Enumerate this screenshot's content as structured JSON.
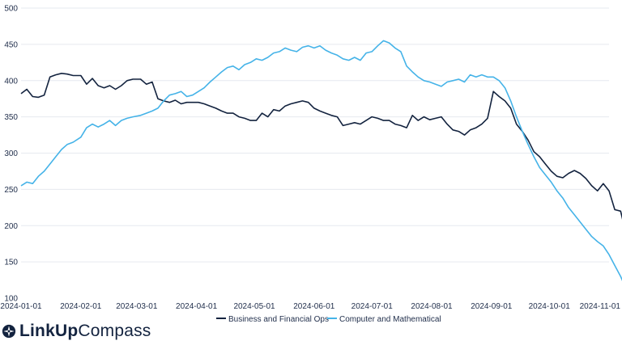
{
  "brand": {
    "name_bold": "LinkUp",
    "name_light": "Compass",
    "icon": "compass-icon"
  },
  "chart_data": {
    "type": "line",
    "title": "",
    "xlabel": "",
    "ylabel": "",
    "ylim": [
      100,
      500
    ],
    "yticks": [
      100,
      150,
      200,
      250,
      300,
      350,
      400,
      450,
      500
    ],
    "xlim": [
      "2024-01-01",
      "2024-11-01"
    ],
    "xticks": [
      "2024-01-01",
      "2024-02-01",
      "2024-03-01",
      "2024-04-01",
      "2024-05-01",
      "2024-06-01",
      "2024-07-01",
      "2024-08-01",
      "2024-09-01",
      "2024-10-01",
      "2024-11-01"
    ],
    "grid": "horizontal",
    "legend": "bottom-center",
    "series": [
      {
        "name": "Business and Financial Ops",
        "color": "#13233f",
        "points": [
          [
            "2024-01-01",
            382
          ],
          [
            "2024-01-04",
            388
          ],
          [
            "2024-01-07",
            378
          ],
          [
            "2024-01-10",
            377
          ],
          [
            "2024-01-13",
            380
          ],
          [
            "2024-01-16",
            405
          ],
          [
            "2024-01-19",
            408
          ],
          [
            "2024-01-22",
            410
          ],
          [
            "2024-01-25",
            409
          ],
          [
            "2024-01-28",
            407
          ],
          [
            "2024-02-01",
            407
          ],
          [
            "2024-02-04",
            395
          ],
          [
            "2024-02-07",
            403
          ],
          [
            "2024-02-10",
            393
          ],
          [
            "2024-02-13",
            390
          ],
          [
            "2024-02-16",
            393
          ],
          [
            "2024-02-19",
            388
          ],
          [
            "2024-02-22",
            393
          ],
          [
            "2024-02-25",
            400
          ],
          [
            "2024-02-28",
            402
          ],
          [
            "2024-03-03",
            402
          ],
          [
            "2024-03-06",
            395
          ],
          [
            "2024-03-09",
            398
          ],
          [
            "2024-03-12",
            375
          ],
          [
            "2024-03-15",
            372
          ],
          [
            "2024-03-18",
            370
          ],
          [
            "2024-03-21",
            373
          ],
          [
            "2024-03-24",
            368
          ],
          [
            "2024-03-27",
            370
          ],
          [
            "2024-03-30",
            370
          ],
          [
            "2024-04-02",
            370
          ],
          [
            "2024-04-05",
            368
          ],
          [
            "2024-04-08",
            365
          ],
          [
            "2024-04-11",
            362
          ],
          [
            "2024-04-14",
            358
          ],
          [
            "2024-04-17",
            355
          ],
          [
            "2024-04-20",
            355
          ],
          [
            "2024-04-23",
            350
          ],
          [
            "2024-04-26",
            348
          ],
          [
            "2024-04-29",
            345
          ],
          [
            "2024-05-02",
            345
          ],
          [
            "2024-05-05",
            355
          ],
          [
            "2024-05-08",
            350
          ],
          [
            "2024-05-11",
            360
          ],
          [
            "2024-05-14",
            358
          ],
          [
            "2024-05-17",
            365
          ],
          [
            "2024-05-20",
            368
          ],
          [
            "2024-05-23",
            370
          ],
          [
            "2024-05-26",
            372
          ],
          [
            "2024-05-29",
            370
          ],
          [
            "2024-06-01",
            362
          ],
          [
            "2024-06-04",
            358
          ],
          [
            "2024-06-07",
            355
          ],
          [
            "2024-06-10",
            352
          ],
          [
            "2024-06-13",
            350
          ],
          [
            "2024-06-16",
            338
          ],
          [
            "2024-06-19",
            340
          ],
          [
            "2024-06-22",
            342
          ],
          [
            "2024-06-25",
            340
          ],
          [
            "2024-06-28",
            345
          ],
          [
            "2024-07-01",
            350
          ],
          [
            "2024-07-04",
            348
          ],
          [
            "2024-07-07",
            345
          ],
          [
            "2024-07-10",
            345
          ],
          [
            "2024-07-13",
            340
          ],
          [
            "2024-07-16",
            338
          ],
          [
            "2024-07-19",
            335
          ],
          [
            "2024-07-22",
            352
          ],
          [
            "2024-07-25",
            345
          ],
          [
            "2024-07-28",
            350
          ],
          [
            "2024-07-31",
            346
          ],
          [
            "2024-08-03",
            348
          ],
          [
            "2024-08-06",
            350
          ],
          [
            "2024-08-09",
            340
          ],
          [
            "2024-08-12",
            332
          ],
          [
            "2024-08-15",
            330
          ],
          [
            "2024-08-18",
            325
          ],
          [
            "2024-08-21",
            332
          ],
          [
            "2024-08-24",
            335
          ],
          [
            "2024-08-27",
            340
          ],
          [
            "2024-08-30",
            348
          ],
          [
            "2024-09-02",
            385
          ],
          [
            "2024-09-05",
            378
          ],
          [
            "2024-09-08",
            372
          ],
          [
            "2024-09-11",
            362
          ],
          [
            "2024-09-14",
            340
          ],
          [
            "2024-09-17",
            330
          ],
          [
            "2024-09-20",
            318
          ],
          [
            "2024-09-23",
            302
          ],
          [
            "2024-09-26",
            295
          ],
          [
            "2024-09-29",
            285
          ],
          [
            "2024-10-02",
            275
          ],
          [
            "2024-10-05",
            268
          ],
          [
            "2024-10-08",
            266
          ],
          [
            "2024-10-11",
            272
          ],
          [
            "2024-10-14",
            276
          ],
          [
            "2024-10-17",
            272
          ],
          [
            "2024-10-20",
            265
          ],
          [
            "2024-10-23",
            255
          ],
          [
            "2024-10-26",
            248
          ],
          [
            "2024-10-29",
            258
          ],
          [
            "2024-11-01",
            248
          ],
          [
            "2024-11-04",
            222
          ],
          [
            "2024-11-07",
            220
          ],
          [
            "2024-11-09",
            198
          ]
        ]
      },
      {
        "name": "Computer and Mathematical",
        "color": "#45b3e8",
        "points": [
          [
            "2024-01-01",
            255
          ],
          [
            "2024-01-04",
            260
          ],
          [
            "2024-01-07",
            258
          ],
          [
            "2024-01-10",
            268
          ],
          [
            "2024-01-13",
            275
          ],
          [
            "2024-01-16",
            285
          ],
          [
            "2024-01-19",
            295
          ],
          [
            "2024-01-22",
            305
          ],
          [
            "2024-01-25",
            312
          ],
          [
            "2024-01-28",
            315
          ],
          [
            "2024-02-01",
            322
          ],
          [
            "2024-02-04",
            335
          ],
          [
            "2024-02-07",
            340
          ],
          [
            "2024-02-10",
            336
          ],
          [
            "2024-02-13",
            340
          ],
          [
            "2024-02-16",
            345
          ],
          [
            "2024-02-19",
            338
          ],
          [
            "2024-02-22",
            345
          ],
          [
            "2024-02-25",
            348
          ],
          [
            "2024-02-28",
            350
          ],
          [
            "2024-03-03",
            352
          ],
          [
            "2024-03-06",
            355
          ],
          [
            "2024-03-09",
            358
          ],
          [
            "2024-03-12",
            362
          ],
          [
            "2024-03-15",
            372
          ],
          [
            "2024-03-18",
            380
          ],
          [
            "2024-03-21",
            382
          ],
          [
            "2024-03-24",
            385
          ],
          [
            "2024-03-27",
            378
          ],
          [
            "2024-03-30",
            380
          ],
          [
            "2024-04-02",
            385
          ],
          [
            "2024-04-05",
            390
          ],
          [
            "2024-04-08",
            398
          ],
          [
            "2024-04-11",
            405
          ],
          [
            "2024-04-14",
            412
          ],
          [
            "2024-04-17",
            418
          ],
          [
            "2024-04-20",
            420
          ],
          [
            "2024-04-23",
            415
          ],
          [
            "2024-04-26",
            422
          ],
          [
            "2024-04-29",
            425
          ],
          [
            "2024-05-02",
            430
          ],
          [
            "2024-05-05",
            428
          ],
          [
            "2024-05-08",
            432
          ],
          [
            "2024-05-11",
            438
          ],
          [
            "2024-05-14",
            440
          ],
          [
            "2024-05-17",
            445
          ],
          [
            "2024-05-20",
            442
          ],
          [
            "2024-05-23",
            440
          ],
          [
            "2024-05-26",
            446
          ],
          [
            "2024-05-29",
            448
          ],
          [
            "2024-06-01",
            445
          ],
          [
            "2024-06-04",
            448
          ],
          [
            "2024-06-07",
            442
          ],
          [
            "2024-06-10",
            438
          ],
          [
            "2024-06-13",
            435
          ],
          [
            "2024-06-16",
            430
          ],
          [
            "2024-06-19",
            428
          ],
          [
            "2024-06-22",
            432
          ],
          [
            "2024-06-25",
            428
          ],
          [
            "2024-06-28",
            438
          ],
          [
            "2024-07-01",
            440
          ],
          [
            "2024-07-04",
            448
          ],
          [
            "2024-07-07",
            455
          ],
          [
            "2024-07-10",
            452
          ],
          [
            "2024-07-13",
            445
          ],
          [
            "2024-07-16",
            440
          ],
          [
            "2024-07-19",
            420
          ],
          [
            "2024-07-22",
            412
          ],
          [
            "2024-07-25",
            405
          ],
          [
            "2024-07-28",
            400
          ],
          [
            "2024-07-31",
            398
          ],
          [
            "2024-08-03",
            395
          ],
          [
            "2024-08-06",
            392
          ],
          [
            "2024-08-09",
            398
          ],
          [
            "2024-08-12",
            400
          ],
          [
            "2024-08-15",
            402
          ],
          [
            "2024-08-18",
            398
          ],
          [
            "2024-08-21",
            408
          ],
          [
            "2024-08-24",
            405
          ],
          [
            "2024-08-27",
            408
          ],
          [
            "2024-08-30",
            405
          ],
          [
            "2024-09-02",
            405
          ],
          [
            "2024-09-05",
            400
          ],
          [
            "2024-09-08",
            390
          ],
          [
            "2024-09-11",
            372
          ],
          [
            "2024-09-14",
            350
          ],
          [
            "2024-09-17",
            330
          ],
          [
            "2024-09-20",
            312
          ],
          [
            "2024-09-23",
            295
          ],
          [
            "2024-09-26",
            280
          ],
          [
            "2024-09-29",
            270
          ],
          [
            "2024-10-02",
            260
          ],
          [
            "2024-10-05",
            248
          ],
          [
            "2024-10-08",
            238
          ],
          [
            "2024-10-11",
            225
          ],
          [
            "2024-10-14",
            215
          ],
          [
            "2024-10-17",
            205
          ],
          [
            "2024-10-20",
            195
          ],
          [
            "2024-10-23",
            185
          ],
          [
            "2024-10-26",
            178
          ],
          [
            "2024-10-29",
            172
          ],
          [
            "2024-11-01",
            160
          ],
          [
            "2024-11-04",
            145
          ],
          [
            "2024-11-07",
            130
          ],
          [
            "2024-11-09",
            118
          ]
        ]
      }
    ]
  }
}
